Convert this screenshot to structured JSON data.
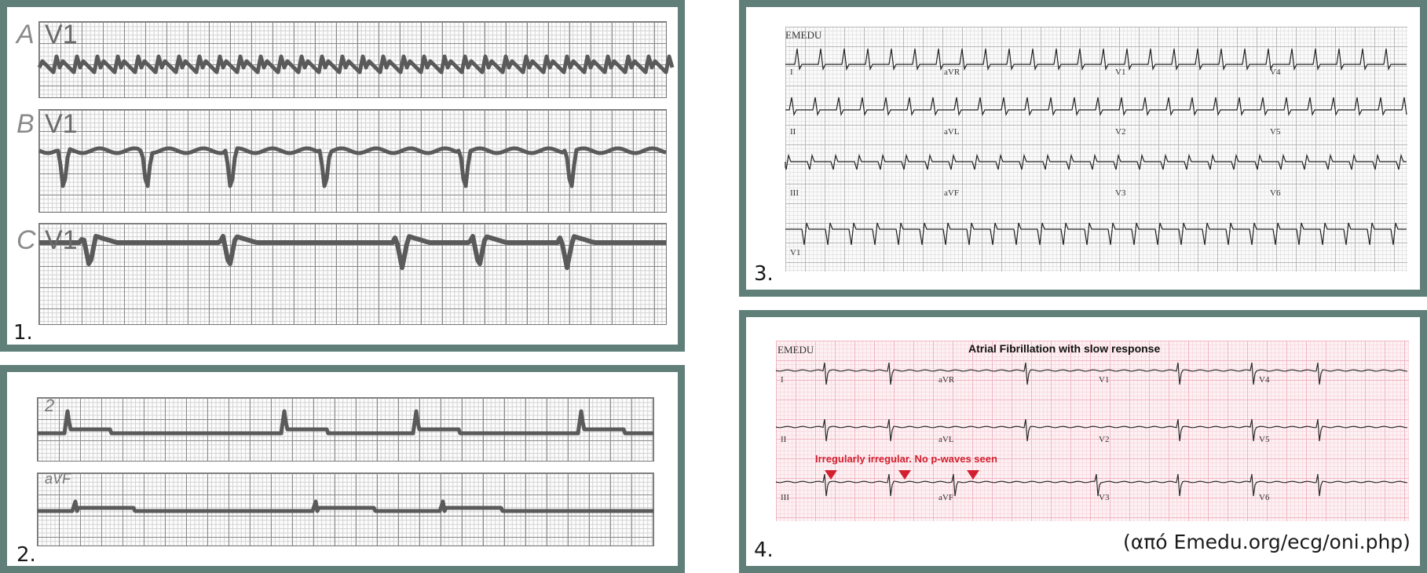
{
  "panels": [
    {
      "number": "1.",
      "rows": [
        {
          "letter": "A",
          "lead": "V1"
        },
        {
          "letter": "B",
          "lead": "V1"
        },
        {
          "letter": "C",
          "lead": "V1"
        }
      ]
    },
    {
      "number": "2.",
      "leads": [
        "2",
        "aVF"
      ]
    },
    {
      "number": "3.",
      "watermark": "EMEDU",
      "leads": [
        "I",
        "aVR",
        "V1",
        "V4",
        "II",
        "aVL",
        "V2",
        "V5",
        "III",
        "aVF",
        "V3",
        "V6",
        "V1"
      ]
    },
    {
      "number": "4.",
      "watermark": "EMEDU",
      "title": "Atrial Fibrillation with slow response",
      "annotation": "Irregularly irregular. No p-waves seen",
      "leads": [
        "I",
        "aVR",
        "V1",
        "V4",
        "II",
        "aVL",
        "V2",
        "V5",
        "III",
        "aVF",
        "V3",
        "V6"
      ]
    }
  ],
  "source": "(από Emedu.org/ecg/oni.php)",
  "colors": {
    "frame": "#5f7f78",
    "trace_bw": "#555555",
    "trace_pink": "#2a2a2a",
    "annotation": "#d21f2f"
  }
}
